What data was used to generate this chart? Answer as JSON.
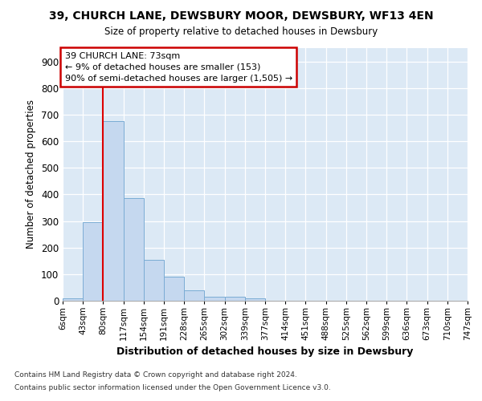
{
  "title1": "39, CHURCH LANE, DEWSBURY MOOR, DEWSBURY, WF13 4EN",
  "title2": "Size of property relative to detached houses in Dewsbury",
  "xlabel": "Distribution of detached houses by size in Dewsbury",
  "ylabel": "Number of detached properties",
  "bar_values": [
    10,
    295,
    675,
    385,
    153,
    90,
    38,
    15,
    15,
    10,
    0,
    0,
    0,
    0,
    0,
    0,
    0,
    0,
    0,
    0
  ],
  "tick_labels": [
    "6sqm",
    "43sqm",
    "80sqm",
    "117sqm",
    "154sqm",
    "191sqm",
    "228sqm",
    "265sqm",
    "302sqm",
    "339sqm",
    "377sqm",
    "414sqm",
    "451sqm",
    "488sqm",
    "525sqm",
    "562sqm",
    "599sqm",
    "636sqm",
    "673sqm",
    "710sqm",
    "747sqm"
  ],
  "bar_color": "#c5d8ef",
  "bar_edge_color": "#7aacd4",
  "bg_color": "#dce9f5",
  "grid_color": "#ffffff",
  "vline_x": 2,
  "vline_color": "#dd0000",
  "ann_line1": "39 CHURCH LANE: 73sqm",
  "ann_line2": "← 9% of detached houses are smaller (153)",
  "ann_line3": "90% of semi-detached houses are larger (1,505) →",
  "ann_box_edgecolor": "#cc0000",
  "ylim": [
    0,
    950
  ],
  "ytick_max": 900,
  "ytick_step": 100,
  "footer1": "Contains HM Land Registry data © Crown copyright and database right 2024.",
  "footer2": "Contains public sector information licensed under the Open Government Licence v3.0."
}
